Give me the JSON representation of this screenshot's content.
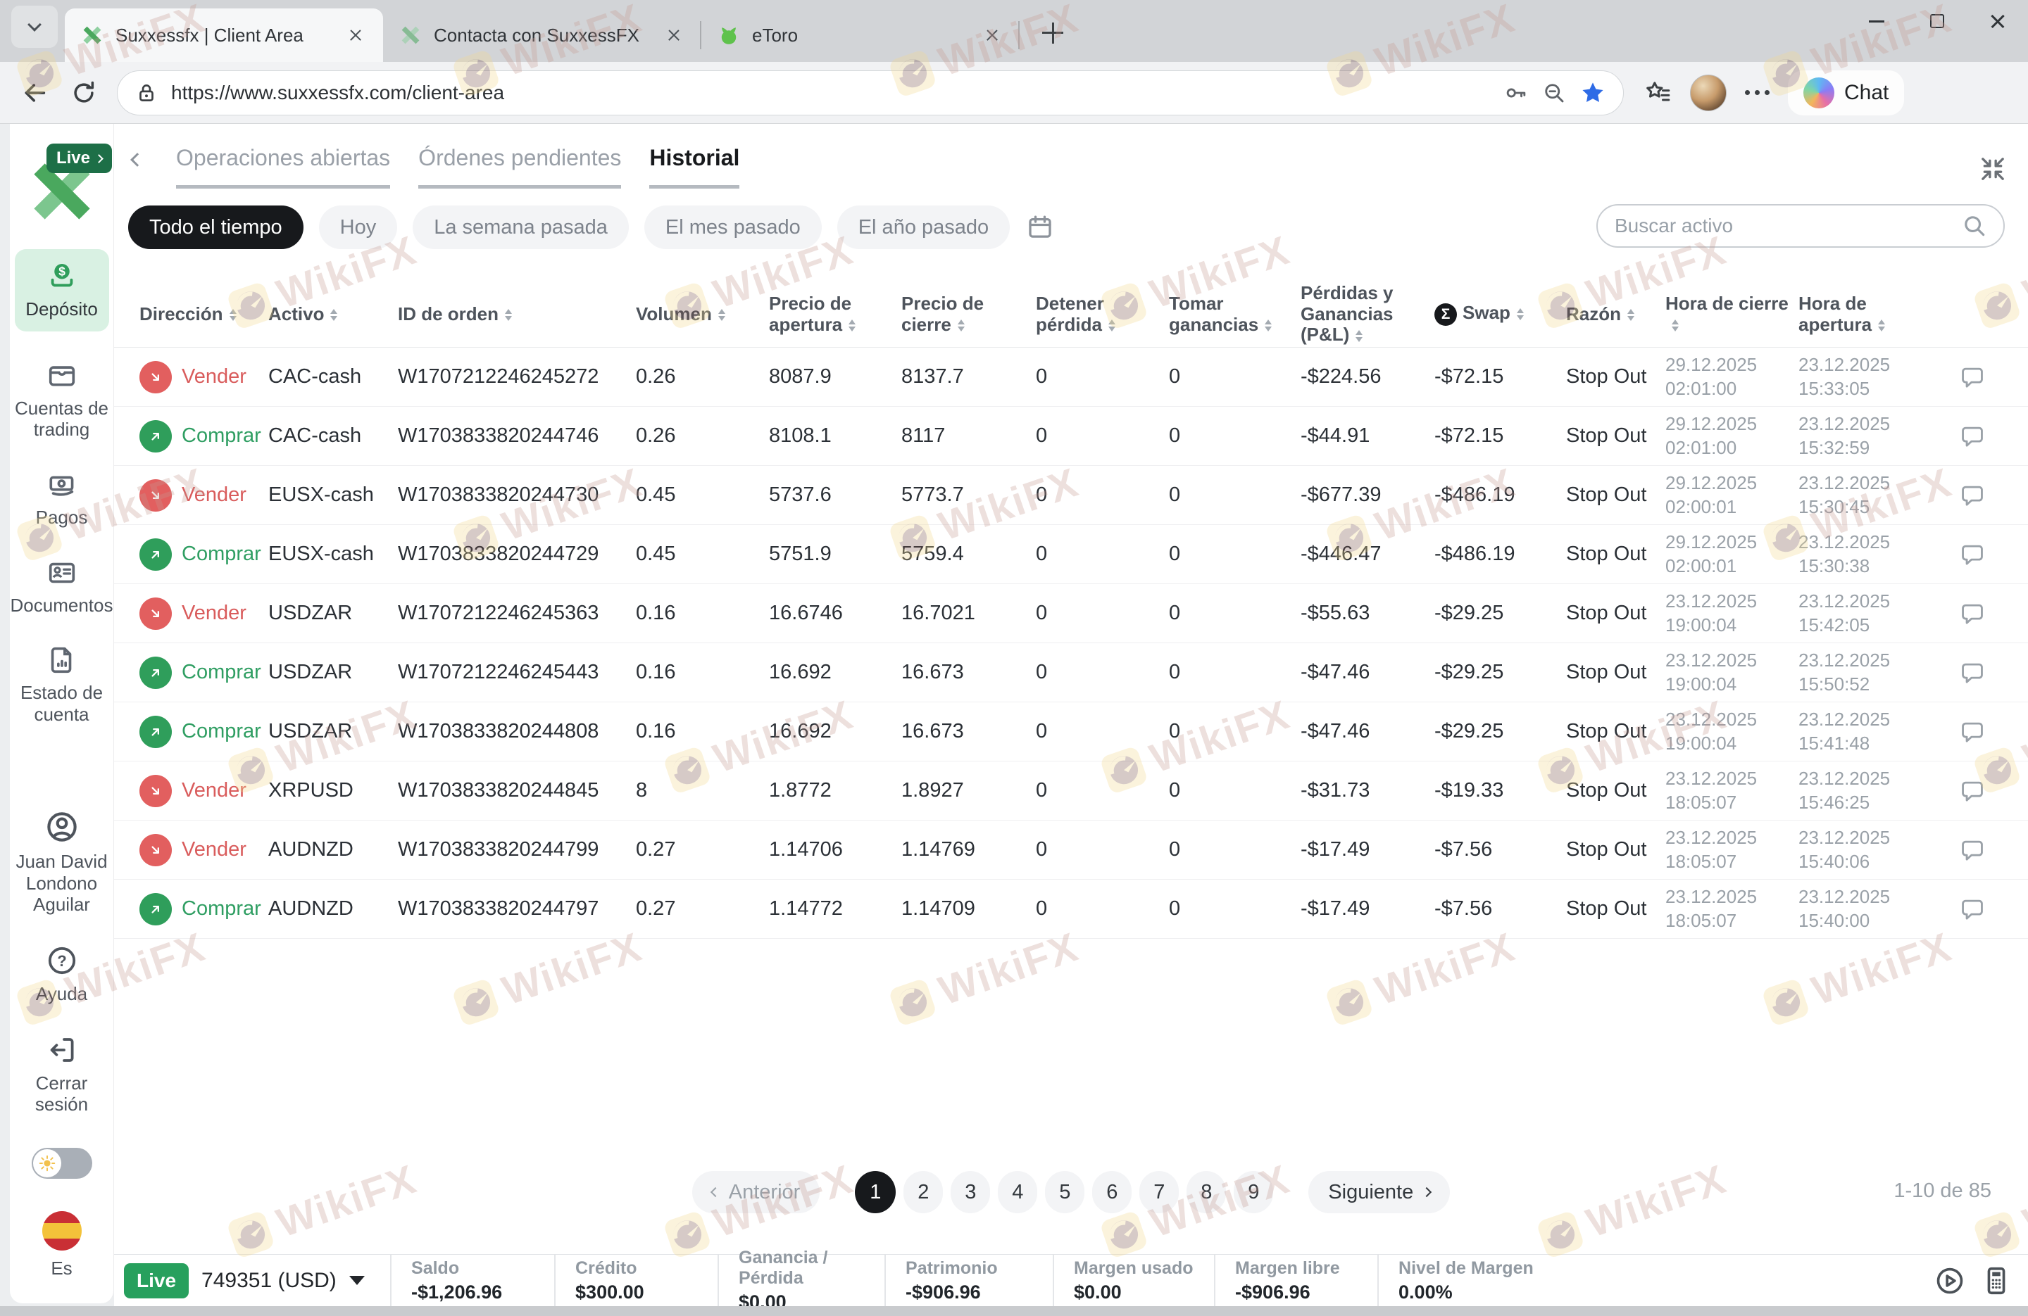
{
  "browser": {
    "tabs": [
      {
        "title": "Suxxessfx | Client Area"
      },
      {
        "title": "Contacta con SuxxessFX"
      },
      {
        "title": "eToro"
      }
    ],
    "url": "https://www.suxxessfx.com/client-area",
    "chat_label": "Chat"
  },
  "sidebar": {
    "live_badge": "Live",
    "items": [
      {
        "label": "Depósito"
      },
      {
        "label": "Cuentas de trading"
      },
      {
        "label": "Pagos"
      },
      {
        "label": "Documentos"
      },
      {
        "label": "Estado de cuenta"
      }
    ],
    "user_name": "Juan David Londono Aguilar",
    "help_label": "Ayuda",
    "logout_label": "Cerrar sesión",
    "language": "Es"
  },
  "main": {
    "view_tabs": [
      "Operaciones abiertas",
      "Órdenes pendientes",
      "Historial"
    ],
    "filters": [
      "Todo el tiempo",
      "Hoy",
      "La semana pasada",
      "El mes pasado",
      "El año pasado"
    ],
    "search_placeholder": "Buscar activo",
    "table": {
      "columns": [
        "Dirección",
        "Activo",
        "ID de orden",
        "Volumen",
        "Precio de apertura",
        "Precio de cierre",
        "Detener pérdida",
        "Tomar ganancias",
        "Pérdidas y Ganancias (P&L)",
        "Swap",
        "Razón",
        "Hora de cierre",
        "Hora de apertura"
      ],
      "rows": [
        {
          "type": "sell",
          "direction": "Vender",
          "asset": "CAC-cash",
          "order_id": "W1707212246245272",
          "volume": "0.26",
          "open_price": "8087.9",
          "close_price": "8137.7",
          "stop_loss": "0",
          "take_profit": "0",
          "pnl": "-$224.56",
          "swap": "-$72.15",
          "reason": "Stop Out",
          "close_date": "29.12.2025",
          "close_time": "02:01:00",
          "open_date": "23.12.2025",
          "open_time": "15:33:05"
        },
        {
          "type": "buy",
          "direction": "Comprar",
          "asset": "CAC-cash",
          "order_id": "W1703833820244746",
          "volume": "0.26",
          "open_price": "8108.1",
          "close_price": "8117",
          "stop_loss": "0",
          "take_profit": "0",
          "pnl": "-$44.91",
          "swap": "-$72.15",
          "reason": "Stop Out",
          "close_date": "29.12.2025",
          "close_time": "02:01:00",
          "open_date": "23.12.2025",
          "open_time": "15:32:59"
        },
        {
          "type": "sell",
          "direction": "Vender",
          "asset": "EUSX-cash",
          "order_id": "W1703833820244730",
          "volume": "0.45",
          "open_price": "5737.6",
          "close_price": "5773.7",
          "stop_loss": "0",
          "take_profit": "0",
          "pnl": "-$677.39",
          "swap": "-$486.19",
          "reason": "Stop Out",
          "close_date": "29.12.2025",
          "close_time": "02:00:01",
          "open_date": "23.12.2025",
          "open_time": "15:30:45"
        },
        {
          "type": "buy",
          "direction": "Comprar",
          "asset": "EUSX-cash",
          "order_id": "W1703833820244729",
          "volume": "0.45",
          "open_price": "5751.9",
          "close_price": "5759.4",
          "stop_loss": "0",
          "take_profit": "0",
          "pnl": "-$446.47",
          "swap": "-$486.19",
          "reason": "Stop Out",
          "close_date": "29.12.2025",
          "close_time": "02:00:01",
          "open_date": "23.12.2025",
          "open_time": "15:30:38"
        },
        {
          "type": "sell",
          "direction": "Vender",
          "asset": "USDZAR",
          "order_id": "W1707212246245363",
          "volume": "0.16",
          "open_price": "16.6746",
          "close_price": "16.7021",
          "stop_loss": "0",
          "take_profit": "0",
          "pnl": "-$55.63",
          "swap": "-$29.25",
          "reason": "Stop Out",
          "close_date": "23.12.2025",
          "close_time": "19:00:04",
          "open_date": "23.12.2025",
          "open_time": "15:42:05"
        },
        {
          "type": "buy",
          "direction": "Comprar",
          "asset": "USDZAR",
          "order_id": "W1707212246245443",
          "volume": "0.16",
          "open_price": "16.692",
          "close_price": "16.673",
          "stop_loss": "0",
          "take_profit": "0",
          "pnl": "-$47.46",
          "swap": "-$29.25",
          "reason": "Stop Out",
          "close_date": "23.12.2025",
          "close_time": "19:00:04",
          "open_date": "23.12.2025",
          "open_time": "15:50:52"
        },
        {
          "type": "buy",
          "direction": "Comprar",
          "asset": "USDZAR",
          "order_id": "W1703833820244808",
          "volume": "0.16",
          "open_price": "16.692",
          "close_price": "16.673",
          "stop_loss": "0",
          "take_profit": "0",
          "pnl": "-$47.46",
          "swap": "-$29.25",
          "reason": "Stop Out",
          "close_date": "23.12.2025",
          "close_time": "19:00:04",
          "open_date": "23.12.2025",
          "open_time": "15:41:48"
        },
        {
          "type": "sell",
          "direction": "Vender",
          "asset": "XRPUSD",
          "order_id": "W1703833820244845",
          "volume": "8",
          "open_price": "1.8772",
          "close_price": "1.8927",
          "stop_loss": "0",
          "take_profit": "0",
          "pnl": "-$31.73",
          "swap": "-$19.33",
          "reason": "Stop Out",
          "close_date": "23.12.2025",
          "close_time": "18:05:07",
          "open_date": "23.12.2025",
          "open_time": "15:46:25"
        },
        {
          "type": "sell",
          "direction": "Vender",
          "asset": "AUDNZD",
          "order_id": "W1703833820244799",
          "volume": "0.27",
          "open_price": "1.14706",
          "close_price": "1.14769",
          "stop_loss": "0",
          "take_profit": "0",
          "pnl": "-$17.49",
          "swap": "-$7.56",
          "reason": "Stop Out",
          "close_date": "23.12.2025",
          "close_time": "18:05:07",
          "open_date": "23.12.2025",
          "open_time": "15:40:06"
        },
        {
          "type": "buy",
          "direction": "Comprar",
          "asset": "AUDNZD",
          "order_id": "W1703833820244797",
          "volume": "0.27",
          "open_price": "1.14772",
          "close_price": "1.14709",
          "stop_loss": "0",
          "take_profit": "0",
          "pnl": "-$17.49",
          "swap": "-$7.56",
          "reason": "Stop Out",
          "close_date": "23.12.2025",
          "close_time": "18:05:07",
          "open_date": "23.12.2025",
          "open_time": "15:40:00"
        }
      ]
    },
    "pagination": {
      "prev_label": "Anterior",
      "next_label": "Siguiente",
      "pages": [
        "1",
        "2",
        "3",
        "4",
        "5",
        "6",
        "7",
        "8",
        "9"
      ],
      "active_index": 0,
      "range_label": "1-10 de 85"
    }
  },
  "bottombar": {
    "live_label": "Live",
    "account": "749351 (USD)",
    "stats": [
      {
        "label": "Saldo",
        "value": "-$1,206.96"
      },
      {
        "label": "Crédito",
        "value": "$300.00"
      },
      {
        "label": "Ganancia / Pérdida",
        "value": "$0.00"
      },
      {
        "label": "Patrimonio",
        "value": "-$906.96"
      },
      {
        "label": "Margen usado",
        "value": "$0.00"
      },
      {
        "label": "Margen libre",
        "value": "-$906.96"
      },
      {
        "label": "Nivel de Margen",
        "value": "0.00%"
      }
    ]
  },
  "watermark": {
    "text": "WikiFX"
  },
  "colors": {
    "accent_green": "#2f9e5b",
    "sell_red": "#e25f5f",
    "active_pill": "#17191c",
    "live_badge": "#27a05d"
  }
}
